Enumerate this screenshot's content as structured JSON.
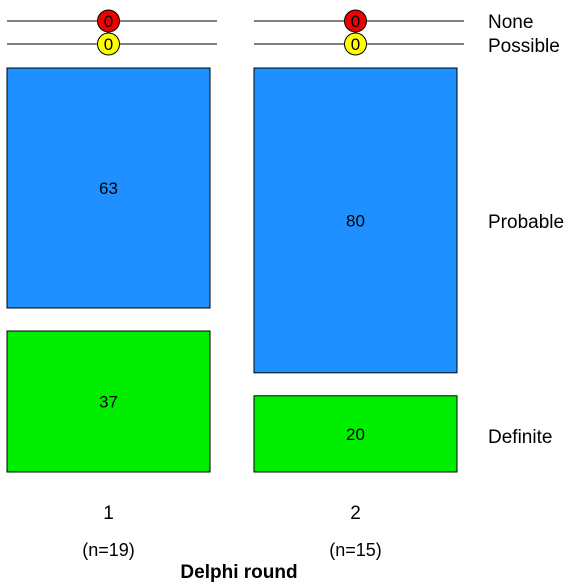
{
  "chart_data": {
    "type": "bar",
    "stacked": true,
    "normalized_percent": true,
    "categories": [
      "1",
      "2"
    ],
    "category_sublabels": [
      "(n=19)",
      "(n=15)"
    ],
    "xlabel": "Delphi round",
    "ylabel": "",
    "title": "",
    "series": [
      {
        "name": "Definite",
        "values": [
          37,
          20
        ]
      },
      {
        "name": "Probable",
        "values": [
          63,
          80
        ]
      },
      {
        "name": "Possible",
        "values": [
          0,
          0
        ]
      },
      {
        "name": "None",
        "values": [
          0,
          0
        ]
      }
    ],
    "legend_placement": "right",
    "grid": false
  },
  "colors": {
    "Definite": "#00ee00",
    "Probable": "#1e90ff",
    "Possible": "#ffff00",
    "None": "#ee0000",
    "stroke": "#000000"
  }
}
